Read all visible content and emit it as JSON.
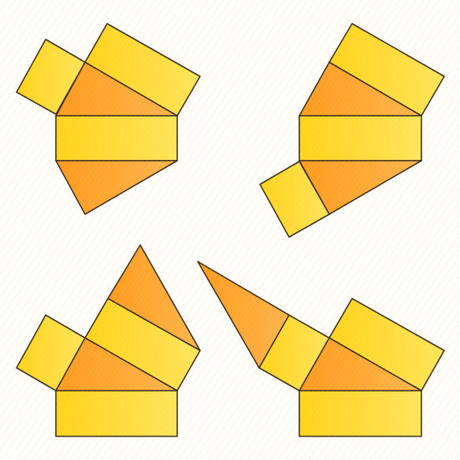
{
  "figure": {
    "description_kind": "prism-nets-puzzle",
    "panel_count": 4,
    "colors": {
      "background": "#fefdf7",
      "rect_light": "#ffe45a",
      "rect_dark": "#ffd21a",
      "tri_light": "#ffb54a",
      "tri_dark": "#ff9a1e",
      "outline": "#3a2e1a",
      "hatch": "#ffffff"
    }
  }
}
